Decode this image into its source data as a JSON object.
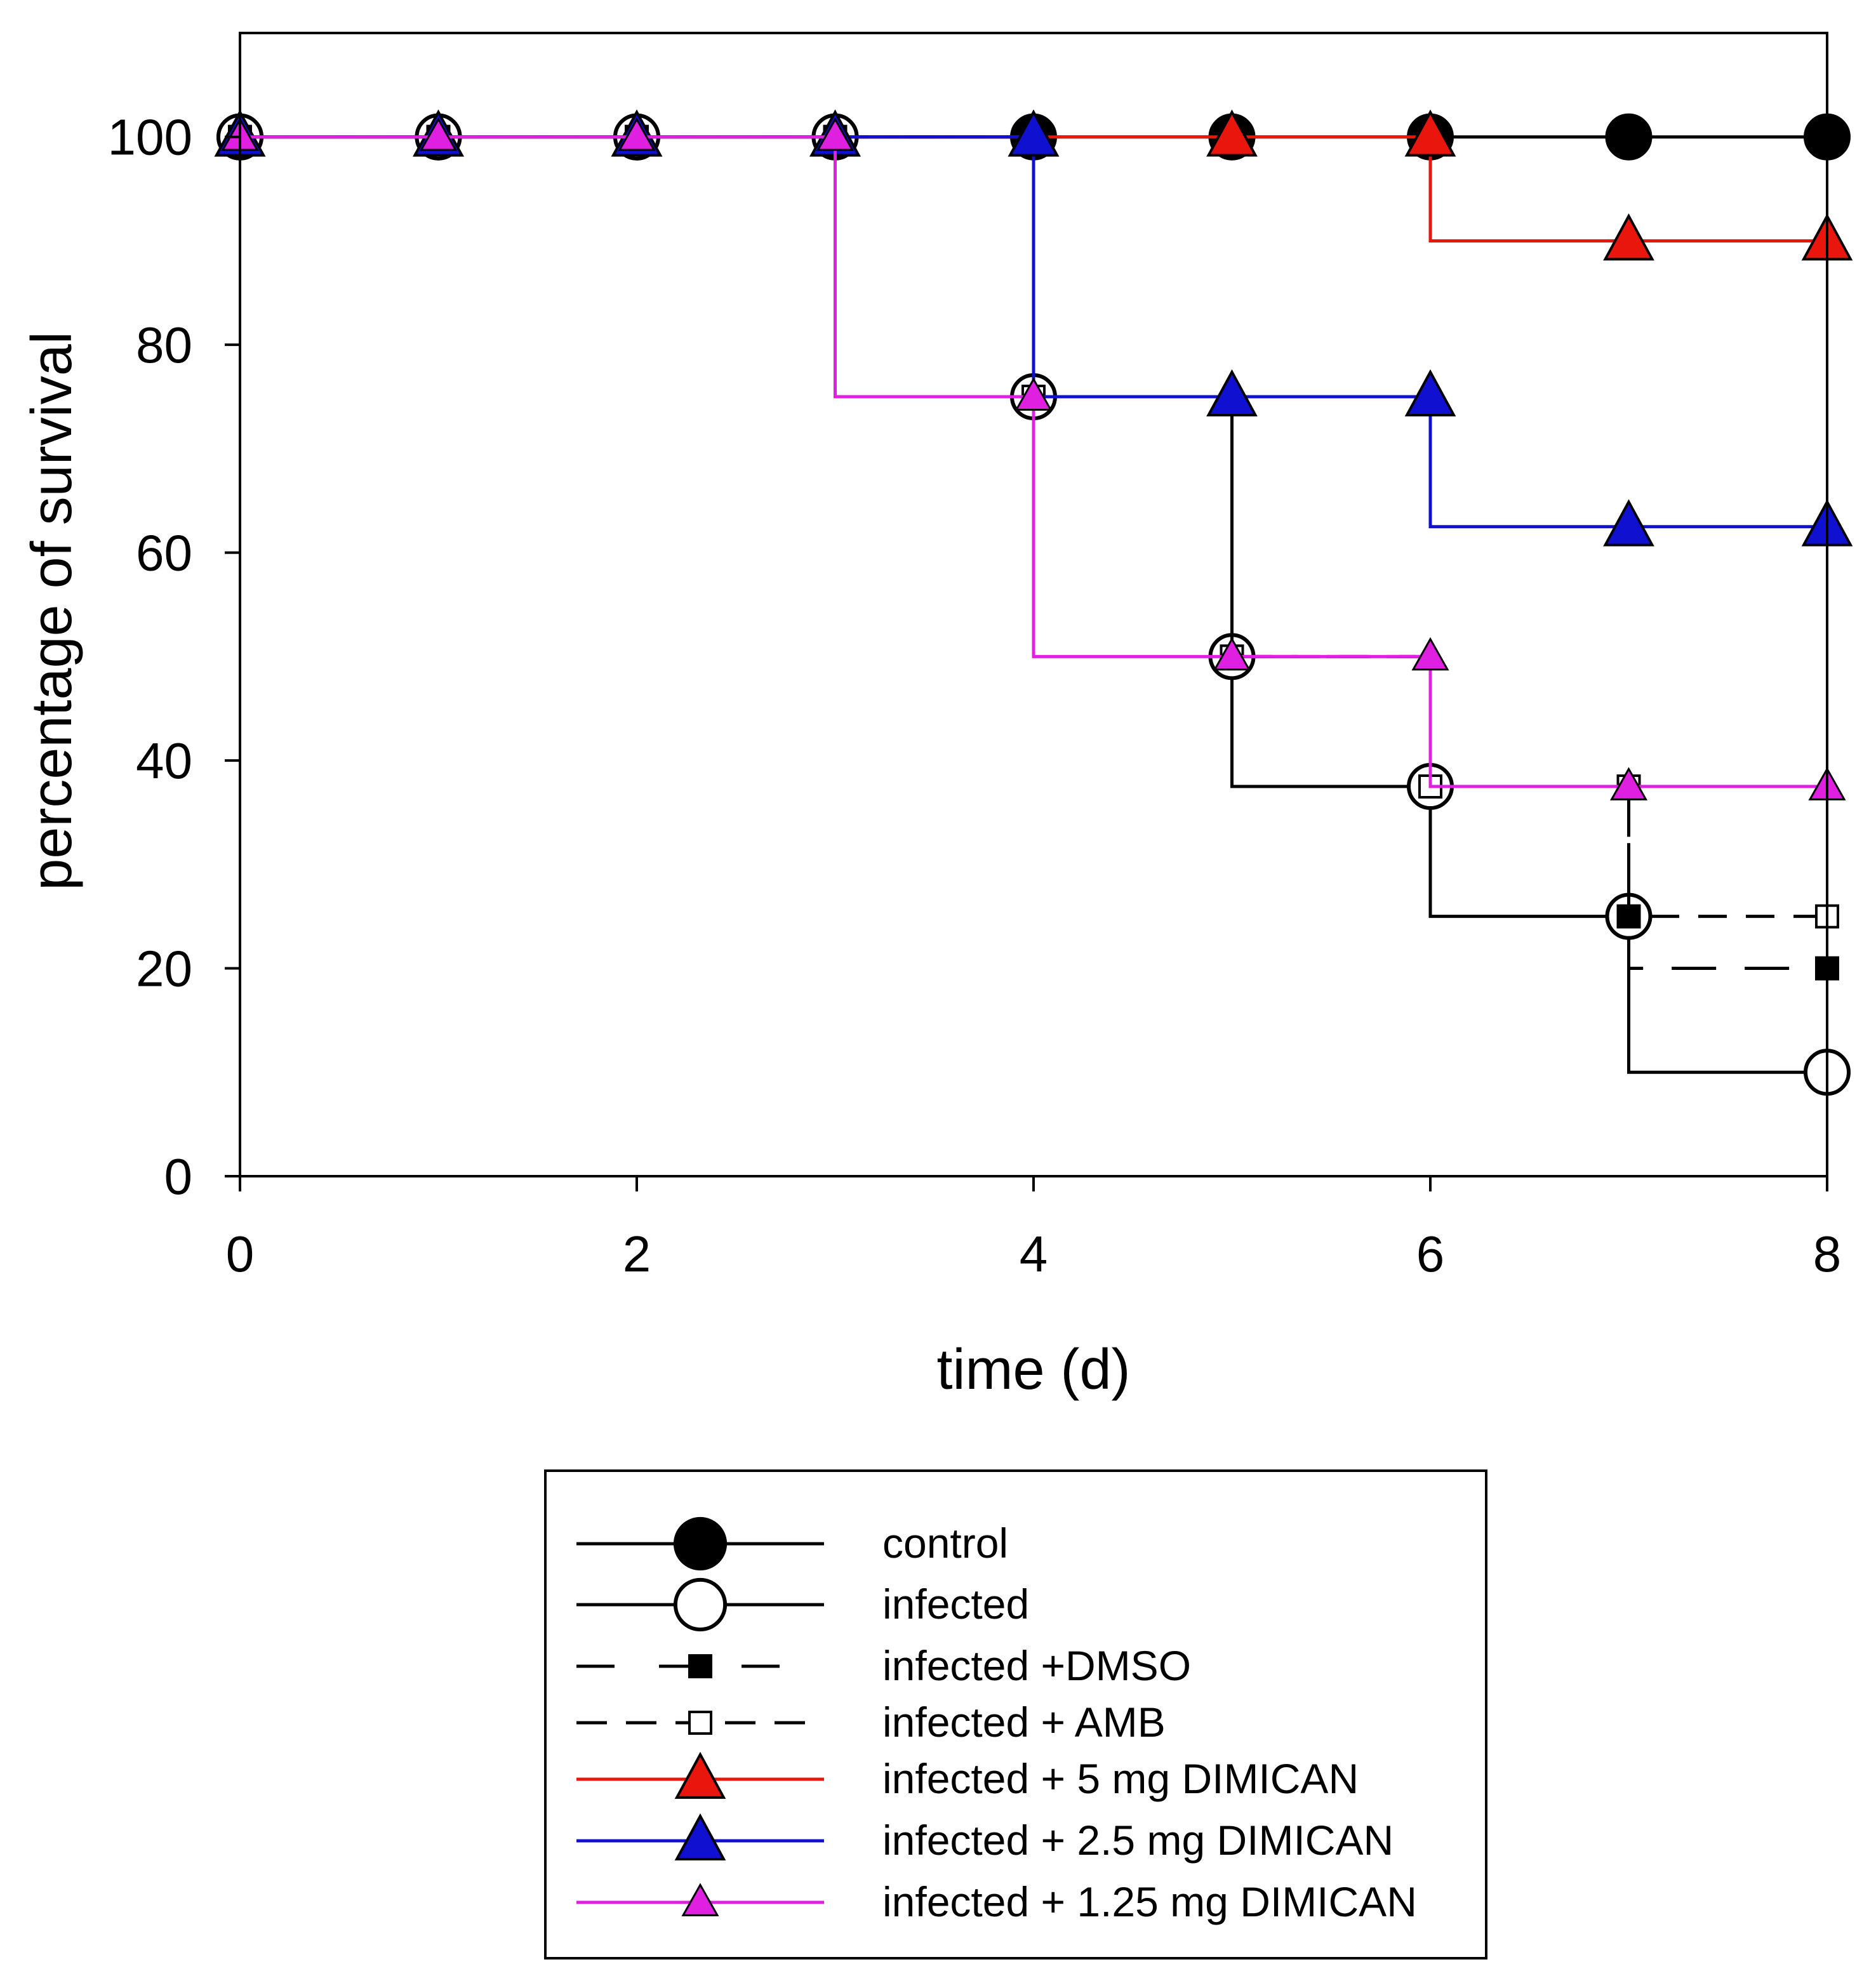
{
  "chart_data": {
    "type": "line",
    "subtype": "step (Kaplan-Meier survival)",
    "title": "",
    "xlabel": "time (d)",
    "ylabel": "percentage of survival",
    "xlim": [
      0,
      8
    ],
    "ylim": [
      0,
      110
    ],
    "xticks": [
      0,
      2,
      4,
      6,
      8
    ],
    "yticks": [
      0,
      20,
      40,
      60,
      80,
      100
    ],
    "grid": false,
    "legend_position": "bottom-center",
    "series": [
      {
        "name": "control",
        "color": "#000000",
        "line_style": "solid",
        "marker": "filled-circle",
        "marker_fill": "#000000",
        "x": [
          0,
          1,
          2,
          3,
          4,
          5,
          6,
          7,
          8
        ],
        "y": [
          100,
          100,
          100,
          100,
          100,
          100,
          100,
          100,
          100
        ]
      },
      {
        "name": "infected",
        "color": "#000000",
        "line_style": "solid",
        "marker": "open-circle",
        "marker_fill": "#ffffff",
        "x": [
          0,
          1,
          2,
          3,
          4,
          5,
          6,
          7,
          8
        ],
        "y": [
          100,
          100,
          100,
          100,
          75,
          50,
          37.5,
          25,
          10
        ],
        "step_levels": [
          100,
          100,
          100,
          100,
          75,
          37.5,
          25,
          10,
          10
        ]
      },
      {
        "name": "infected +DMSO",
        "color": "#000000",
        "line_style": "long-dash",
        "marker": "filled-square",
        "marker_fill": "#000000",
        "x": [
          0,
          1,
          2,
          3,
          4,
          5,
          6,
          7,
          8
        ],
        "y": [
          100,
          100,
          100,
          100,
          75,
          50,
          37.5,
          25,
          20
        ],
        "step_levels": [
          100,
          100,
          100,
          100,
          75,
          50,
          37.5,
          20,
          20
        ]
      },
      {
        "name": "infected + AMB",
        "color": "#000000",
        "line_style": "dash",
        "marker": "open-square",
        "marker_fill": "#ffffff",
        "x": [
          0,
          1,
          2,
          3,
          4,
          5,
          6,
          7,
          8
        ],
        "y": [
          100,
          100,
          100,
          100,
          75,
          50,
          37.5,
          37.5,
          25
        ],
        "step_levels": [
          100,
          100,
          100,
          100,
          75,
          50,
          37.5,
          25,
          25
        ]
      },
      {
        "name": "infected + 5 mg DIMICAN",
        "color": "#e8160c",
        "line_style": "solid",
        "marker": "triangle",
        "marker_fill": "#e8160c",
        "x": [
          0,
          1,
          2,
          3,
          4,
          5,
          6,
          7,
          8
        ],
        "y": [
          100,
          100,
          100,
          100,
          100,
          100,
          100,
          90,
          90
        ],
        "step_levels": [
          100,
          100,
          100,
          100,
          100,
          100,
          90,
          90,
          90
        ]
      },
      {
        "name": "infected + 2.5 mg DIMICAN",
        "color": "#1010d0",
        "line_style": "solid",
        "marker": "triangle",
        "marker_fill": "#1010d0",
        "x": [
          0,
          1,
          2,
          3,
          4,
          5,
          6,
          7,
          8
        ],
        "y": [
          100,
          100,
          100,
          100,
          100,
          75,
          75,
          62.5,
          62.5
        ],
        "step_levels": [
          100,
          100,
          100,
          100,
          75,
          75,
          62.5,
          62.5,
          62.5
        ]
      },
      {
        "name": "infected + 1.25 mg DIMICAN",
        "color": "#e020e0",
        "line_style": "solid",
        "marker": "triangle-small",
        "marker_fill": "#e020e0",
        "x": [
          0,
          1,
          2,
          3,
          4,
          5,
          6,
          7,
          8
        ],
        "y": [
          100,
          100,
          100,
          100,
          75,
          50,
          50,
          37.5,
          37.5
        ],
        "step_levels": [
          100,
          100,
          100,
          75,
          50,
          50,
          37.5,
          37.5,
          37.5
        ]
      }
    ]
  }
}
